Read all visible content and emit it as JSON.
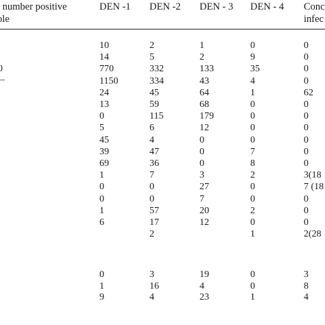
{
  "header": {
    "col0_line1": "l number positive",
    "col0_line2": "ple",
    "den1": "DEN -1",
    "den2": "DEN -2",
    "den3": "DEN - 3",
    "den4": "DEN - 4",
    "coinf_line1": "Conc",
    "coinf_line2": "infec"
  },
  "left_fragments": [
    "0",
    "–"
  ],
  "rows": [
    {
      "den1": "10",
      "den2": "2",
      "den3": "1",
      "den4": "0",
      "coinf": "0"
    },
    {
      "den1": "14",
      "den2": "5",
      "den3": "2",
      "den4": "9",
      "coinf": "0"
    },
    {
      "den1": "770",
      "den2": "332",
      "den3": "133",
      "den4": "35",
      "coinf": "0"
    },
    {
      "den1": "1150",
      "den2": "334",
      "den3": "43",
      "den4": "4",
      "coinf": "0"
    },
    {
      "den1": "24",
      "den2": "45",
      "den3": "64",
      "den4": "1",
      "coinf": "62"
    },
    {
      "den1": "13",
      "den2": "59",
      "den3": "68",
      "den4": "0",
      "coinf": "0"
    },
    {
      "den1": "0",
      "den2": "115",
      "den3": "179",
      "den4": "0",
      "coinf": "0"
    },
    {
      "den1": "5",
      "den2": "6",
      "den3": "12",
      "den4": "0",
      "coinf": "0"
    },
    {
      "den1": "45",
      "den2": "4",
      "den3": "0",
      "den4": "0",
      "coinf": "0"
    },
    {
      "den1": "39",
      "den2": "47",
      "den3": "0",
      "den4": "7",
      "coinf": "0"
    },
    {
      "den1": "69",
      "den2": "36",
      "den3": "0",
      "den4": "8",
      "coinf": "0"
    },
    {
      "den1": "1",
      "den2": "7",
      "den3": "3",
      "den4": "2",
      "coinf": "3(18"
    },
    {
      "den1": "0",
      "den2": "0",
      "den3": "27",
      "den4": "0",
      "coinf": "7 (18"
    },
    {
      "den1": "0",
      "den2": "0",
      "den3": "7",
      "den4": "0",
      "coinf": "0"
    },
    {
      "den1": "1",
      "den2": "57",
      "den3": "20",
      "den4": "2",
      "coinf": "0"
    },
    {
      "den1": "6",
      "den2": "17",
      "den3": "12",
      "den4": "0",
      "coinf": "0"
    },
    {
      "den1": "",
      "den2": "2",
      "den3": "",
      "den4": "1",
      "coinf": "2(28"
    },
    {
      "den1": "0",
      "den2": "3",
      "den3": "19",
      "den4": "0",
      "coinf": "3"
    },
    {
      "den1": "1",
      "den2": "16",
      "den3": "4",
      "den4": "0",
      "coinf": "8"
    },
    {
      "den1": "9",
      "den2": "4",
      "den3": "23",
      "den4": "1",
      "coinf": "4"
    }
  ]
}
